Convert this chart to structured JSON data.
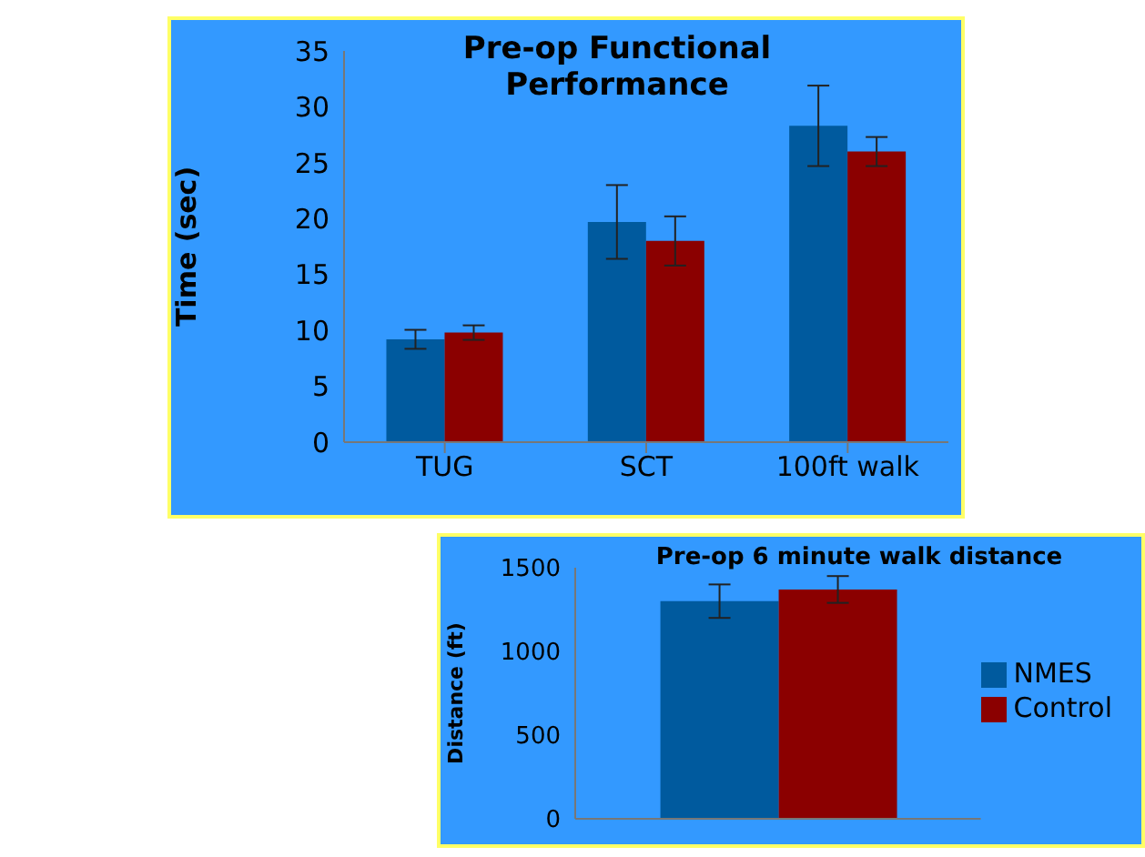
{
  "chart_data": [
    {
      "type": "bar",
      "title": "Pre-op Functional Performance",
      "ylabel": "Time (sec)",
      "categories": [
        "TUG",
        "SCT",
        "100ft walk"
      ],
      "series": [
        {
          "color": "#005a9e",
          "values": [
            9.2,
            19.7,
            28.3
          ],
          "errors": [
            0.85,
            3.3,
            3.6
          ]
        },
        {
          "color": "#8b0000",
          "values": [
            9.8,
            18.0,
            26.0
          ],
          "errors": [
            0.65,
            2.2,
            1.3
          ]
        }
      ],
      "ylim": [
        0,
        35
      ],
      "yticks": [
        0,
        5,
        10,
        15,
        20,
        25,
        30,
        35
      ],
      "grid": false,
      "legend": false
    },
    {
      "type": "bar",
      "title": "Pre-op 6 minute walk distance",
      "ylabel": "Distance (ft)",
      "categories": [
        null
      ],
      "series": [
        {
          "name": "NMES",
          "color": "#005a9e",
          "values": [
            1300
          ],
          "errors": [
            100
          ]
        },
        {
          "name": "Control",
          "color": "#8b0000",
          "values": [
            1370
          ],
          "errors": [
            80
          ]
        }
      ],
      "ylim": [
        0,
        1500
      ],
      "yticks": [
        0,
        500,
        1000,
        1500
      ],
      "grid": false,
      "legend": "right",
      "tick_labels": "y"
    }
  ]
}
